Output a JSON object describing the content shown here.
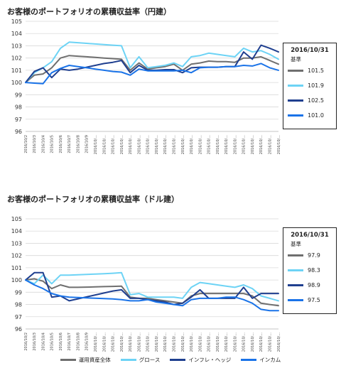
{
  "panels": [
    {
      "title": "お客様のポートフォリオの累積収益率（円建）",
      "legend": {
        "date": "2016/10/31",
        "sub": "基準",
        "values": [
          "101.5",
          "101.9",
          "102.5",
          "101.0"
        ]
      }
    },
    {
      "title": "お客様のポートフォリオの累積収益率（ドル建）",
      "legend": {
        "date": "2016/10/31",
        "sub": "基準",
        "values": [
          "97.9",
          "98.3",
          "98.9",
          "97.5"
        ]
      }
    }
  ],
  "series_legend": [
    "運用資産全体",
    "グロース",
    "インフレ・ヘッジ",
    "インカム"
  ],
  "colors": [
    "#6f6f6f",
    "#6dd3f5",
    "#1f3f8f",
    "#1a73e8"
  ],
  "chart_data": [
    {
      "type": "line",
      "title": "お客様のポートフォリオの累積収益率（円建）",
      "x_display": [
        "2016/10/2",
        "2016/10/3",
        "2016/10/4",
        "2016/10/5",
        "2016/10/6",
        "2016/10/7",
        "2016/10/8",
        "2016/10/9",
        "2016/10/...",
        "2016/10/...",
        "2016/10/...",
        "2016/10/...",
        "2016/10/...",
        "2016/10/...",
        "2016/10/...",
        "2016/10/...",
        "2016/10/...",
        "2016/10/...",
        "2016/10/...",
        "2016/10/...",
        "2016/10/...",
        "2016/10/...",
        "2016/10/...",
        "2016/10/...",
        "2016/10/...",
        "2016/10/...",
        "2016/10/...",
        "2016/10/...",
        "2016/10/...",
        "2016/10/..."
      ],
      "ylim": [
        96,
        105
      ],
      "yticks": [
        96,
        97,
        98,
        99,
        100,
        101,
        102,
        103,
        104,
        105
      ],
      "grid": true,
      "series": [
        {
          "name": "運用資産全体",
          "values": [
            100.0,
            100.6,
            100.7,
            101.2,
            102.0,
            102.2,
            102.15,
            102.1,
            102.05,
            102.0,
            101.95,
            101.9,
            101.0,
            101.6,
            101.1,
            101.2,
            101.3,
            101.5,
            101.0,
            101.5,
            101.6,
            101.75,
            101.7,
            101.7,
            101.65,
            102.0,
            102.0,
            102.1,
            101.8,
            101.5
          ]
        },
        {
          "name": "グロース",
          "values": [
            100.0,
            100.8,
            101.2,
            101.7,
            102.8,
            103.3,
            103.25,
            103.2,
            103.15,
            103.1,
            103.05,
            103.0,
            101.2,
            102.1,
            101.2,
            101.3,
            101.4,
            101.6,
            101.3,
            102.1,
            102.2,
            102.4,
            102.3,
            102.2,
            102.1,
            102.8,
            102.5,
            102.6,
            102.3,
            101.9
          ]
        },
        {
          "name": "インフレ・ヘッジ",
          "values": [
            100.0,
            100.9,
            101.2,
            100.4,
            101.1,
            101.0,
            101.1,
            101.25,
            101.4,
            101.55,
            101.65,
            101.8,
            100.8,
            101.4,
            101.0,
            101.0,
            101.05,
            101.05,
            100.8,
            101.2,
            101.25,
            101.25,
            101.25,
            101.3,
            101.3,
            102.5,
            101.9,
            103.05,
            102.8,
            102.5
          ]
        },
        {
          "name": "インカム",
          "values": [
            100.0,
            99.95,
            99.9,
            100.8,
            101.15,
            101.4,
            101.3,
            101.2,
            101.1,
            101.0,
            100.9,
            100.85,
            100.6,
            101.1,
            100.95,
            100.95,
            100.95,
            100.95,
            101.0,
            100.8,
            101.2,
            101.25,
            101.25,
            101.3,
            101.3,
            101.4,
            101.35,
            101.55,
            101.2,
            101.0
          ]
        }
      ]
    },
    {
      "type": "line",
      "title": "お客様のポートフォリオの累積収益率（ドル建）",
      "x_display": [
        "2016/10/2",
        "2016/10/3",
        "2016/10/4",
        "2016/10/5",
        "2016/10/6",
        "2016/10/7",
        "2016/10/8",
        "2016/10/9",
        "2016/10/...",
        "2016/10/...",
        "2016/10/...",
        "2016/10/...",
        "2016/10/...",
        "2016/10/...",
        "2016/10/...",
        "2016/10/...",
        "2016/10/...",
        "2016/10/...",
        "2016/10/...",
        "2016/10/...",
        "2016/10/...",
        "2016/10/...",
        "2016/10/...",
        "2016/10/...",
        "2016/10/...",
        "2016/10/...",
        "2016/10/...",
        "2016/10/...",
        "2016/10/...",
        "2016/10/..."
      ],
      "ylim": [
        96,
        105
      ],
      "yticks": [
        96,
        97,
        98,
        99,
        100,
        101,
        102,
        103,
        104,
        105
      ],
      "grid": true,
      "series": [
        {
          "name": "運用資産全体",
          "values": [
            100.0,
            100.1,
            99.9,
            99.3,
            99.6,
            99.4,
            99.4,
            99.42,
            99.44,
            99.46,
            99.48,
            99.5,
            98.6,
            98.5,
            98.5,
            98.4,
            98.3,
            98.2,
            98.1,
            98.7,
            98.9,
            98.9,
            98.9,
            98.9,
            98.9,
            98.9,
            98.7,
            98.1,
            98.0,
            97.9
          ]
        },
        {
          "name": "グロース",
          "values": [
            100.0,
            99.7,
            100.4,
            99.7,
            100.4,
            100.4,
            100.43,
            100.46,
            100.49,
            100.52,
            100.55,
            100.6,
            98.8,
            98.9,
            98.6,
            98.6,
            98.6,
            98.6,
            98.5,
            99.4,
            99.8,
            99.7,
            99.6,
            99.5,
            99.4,
            99.6,
            99.3,
            98.7,
            98.5,
            98.3
          ]
        },
        {
          "name": "インフレ・ヘッジ",
          "values": [
            100.0,
            100.6,
            100.6,
            98.6,
            98.7,
            98.3,
            98.46,
            98.62,
            98.78,
            98.94,
            99.1,
            99.2,
            98.5,
            98.5,
            98.4,
            98.3,
            98.2,
            98.0,
            98.1,
            98.6,
            99.2,
            98.5,
            98.5,
            98.5,
            98.5,
            99.4,
            98.5,
            98.9,
            98.9,
            98.9
          ]
        },
        {
          "name": "インカム",
          "values": [
            100.0,
            99.6,
            99.3,
            98.9,
            98.7,
            98.6,
            98.57,
            98.54,
            98.51,
            98.48,
            98.45,
            98.4,
            98.3,
            98.3,
            98.4,
            98.2,
            98.1,
            98.0,
            97.9,
            98.4,
            98.5,
            98.5,
            98.5,
            98.6,
            98.6,
            98.4,
            98.1,
            97.6,
            97.5,
            97.5
          ]
        }
      ]
    }
  ]
}
